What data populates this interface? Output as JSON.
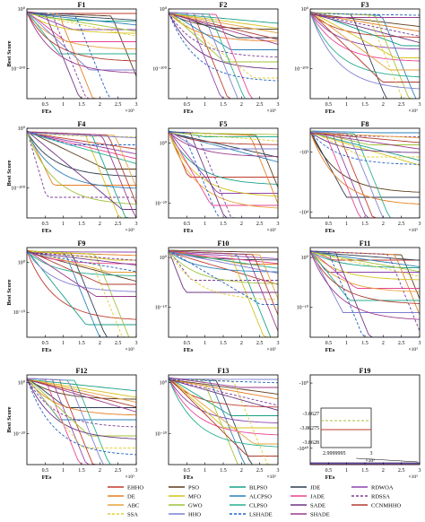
{
  "chart_data": {
    "type": "line",
    "ylabel": "Best Score",
    "xlabel": "FEs",
    "x_ticks": [
      "0.5",
      "1",
      "1.5",
      "2",
      "2.5",
      "3"
    ],
    "x_tick_values": [
      0.5,
      1,
      1.5,
      2,
      2.5,
      3
    ],
    "x_multiplier": "×10⁵",
    "xlim": [
      0,
      3
    ],
    "series_names": [
      "EHHO",
      "PSO",
      "BLPSO",
      "JDE",
      "RDWOA",
      "DE",
      "MFO",
      "ALCPSO",
      "JADE",
      "RDSSA",
      "ABC",
      "GWO",
      "CLPSO",
      "SADE",
      "CCNMHHO",
      "SSA",
      "HHO",
      "LSHADE",
      "SHADE"
    ],
    "series_colors": [
      "#c0392b",
      "#5a3a1a",
      "#16a085",
      "#2c3e50",
      "#8e44ad",
      "#e67e22",
      "#d4c21a",
      "#2980b9",
      "#e84393",
      "#7d3c98",
      "#e6a23c",
      "#a0c23a",
      "#27ae8f",
      "#6c3483",
      "#b03a2e",
      "#e0d030",
      "#7f7fd0",
      "#2060c0",
      "#9b3a8c"
    ],
    "series_dash": [
      false,
      false,
      false,
      false,
      false,
      false,
      false,
      false,
      false,
      true,
      false,
      false,
      false,
      false,
      false,
      true,
      false,
      true,
      false
    ],
    "panels": [
      {
        "title": "F1",
        "yticks": [
          "10⁰",
          "10⁻²⁰⁰"
        ],
        "ytick_values": [
          0,
          -200
        ],
        "ylim": [
          -300,
          0
        ],
        "scale": "log"
      },
      {
        "title": "F2",
        "yticks": [
          "10⁰",
          "10⁻²⁰⁰"
        ],
        "ytick_values": [
          0,
          -200
        ],
        "ylim": [
          -300,
          0
        ],
        "scale": "log"
      },
      {
        "title": "F3",
        "yticks": [
          "10⁰",
          "10⁻²⁰⁰"
        ],
        "ytick_values": [
          0,
          -200
        ],
        "ylim": [
          -300,
          0
        ],
        "scale": "log"
      },
      {
        "title": "F4",
        "yticks": [
          "10⁰",
          "10⁻²⁰⁰"
        ],
        "ytick_values": [
          0,
          -200
        ],
        "ylim": [
          -300,
          0
        ],
        "scale": "log"
      },
      {
        "title": "F5",
        "yticks": [
          "10⁰",
          "10⁻²⁰"
        ],
        "ytick_values": [
          0,
          -20
        ],
        "ylim": [
          -25,
          5
        ],
        "scale": "log"
      },
      {
        "title": "F8",
        "yticks": [
          "-10³",
          "-10⁴"
        ],
        "ytick_values": [
          3,
          4
        ],
        "ylim": [
          2.6,
          4.1
        ],
        "scale": "neglog"
      },
      {
        "title": "F9",
        "yticks": [
          "10⁰",
          "10⁻¹⁰"
        ],
        "ytick_values": [
          0,
          -10
        ],
        "ylim": [
          -15,
          3
        ],
        "scale": "log"
      },
      {
        "title": "F10",
        "yticks": [
          "10⁰",
          "10⁻¹⁰"
        ],
        "ytick_values": [
          0,
          -10
        ],
        "ylim": [
          -16,
          2
        ],
        "scale": "log"
      },
      {
        "title": "F11",
        "yticks": [
          "10⁰",
          "10⁻¹⁰"
        ],
        "ytick_values": [
          0,
          -10
        ],
        "ylim": [
          -16,
          2
        ],
        "scale": "log"
      },
      {
        "title": "F12",
        "yticks": [
          "10⁰",
          "10⁻²⁰"
        ],
        "ytick_values": [
          0,
          -20
        ],
        "ylim": [
          -32,
          3
        ],
        "scale": "log"
      },
      {
        "title": "F13",
        "yticks": [
          "10⁰",
          "10⁻²⁰"
        ],
        "ytick_values": [
          0,
          -20
        ],
        "ylim": [
          -32,
          3
        ],
        "scale": "log"
      },
      {
        "title": "F19",
        "yticks": [
          "-10⁰",
          "-10⁴⁰"
        ],
        "ytick_values": [
          0,
          40
        ],
        "ylim": [
          -5,
          50
        ],
        "scale": "neglog"
      }
    ],
    "inset": {
      "panel": "F19",
      "yticks": [
        "-3.8627",
        "-3.86275",
        "-3.8628"
      ],
      "ytick_values": [
        -3.8627,
        -3.86275,
        -3.8628
      ],
      "xticks": [
        "2.9999995",
        "3"
      ],
      "x_multiplier": "×10⁵"
    }
  }
}
